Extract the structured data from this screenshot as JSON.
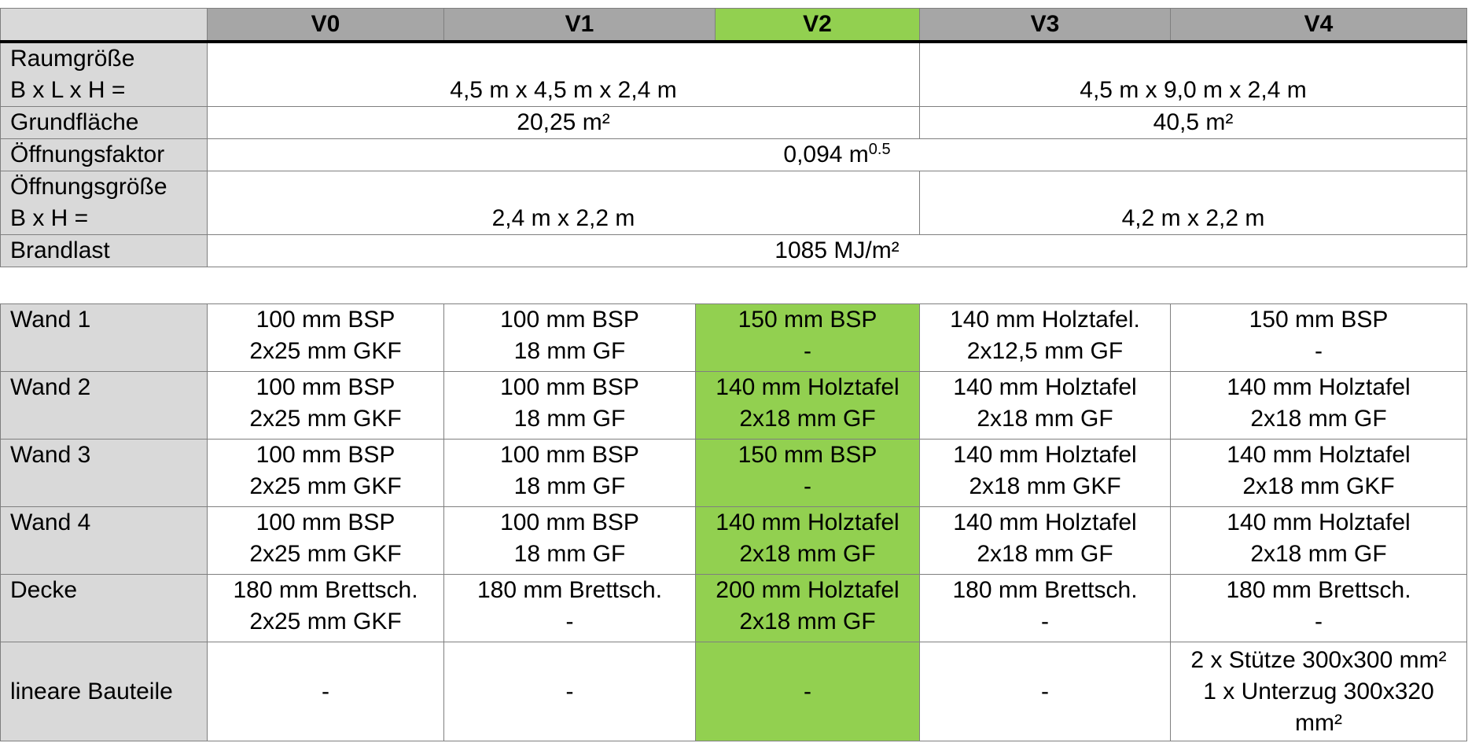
{
  "header": {
    "corner": "",
    "cols": [
      "V0",
      "V1",
      "V2",
      "V3",
      "V4"
    ]
  },
  "table1": {
    "raum": {
      "label1": "Raumgröße",
      "label2": "B x L x H =",
      "v012": "4,5 m x 4,5 m x 2,4 m",
      "v34": "4,5 m x 9,0 m x 2,4 m"
    },
    "grund": {
      "label": "Grundfläche",
      "v012": "20,25 m²",
      "v34": "40,5 m²"
    },
    "oeff": {
      "label": "Öffnungsfaktor",
      "value": "0,094 m",
      "exp": "0.5"
    },
    "oeffg": {
      "label1": "Öffnungsgröße",
      "label2": "B x H =",
      "v012": "2,4 m x 2,2 m",
      "v34": "4,2 m x 2,2 m"
    },
    "brand": {
      "label": "Brandlast",
      "value": "1085 MJ/m²"
    }
  },
  "table2": {
    "rows": [
      {
        "label": "Wand 1",
        "cells": [
          [
            "100 mm BSP",
            "2x25 mm GKF"
          ],
          [
            "100 mm BSP",
            "18 mm GF"
          ],
          [
            "150 mm BSP",
            "-"
          ],
          [
            "140 mm Holztafel.",
            "2x12,5 mm GF"
          ],
          [
            "150 mm BSP",
            "-"
          ]
        ]
      },
      {
        "label": "Wand 2",
        "cells": [
          [
            "100 mm BSP",
            "2x25 mm GKF"
          ],
          [
            "100 mm BSP",
            "18 mm GF"
          ],
          [
            "140 mm Holztafel",
            "2x18 mm GF"
          ],
          [
            "140 mm Holztafel",
            "2x18 mm GF"
          ],
          [
            "140 mm Holztafel",
            "2x18 mm GF"
          ]
        ]
      },
      {
        "label": "Wand 3",
        "cells": [
          [
            "100 mm BSP",
            "2x25 mm GKF"
          ],
          [
            "100 mm BSP",
            "18 mm GF"
          ],
          [
            "150 mm BSP",
            "-"
          ],
          [
            "140 mm Holztafel",
            "2x18 mm GKF"
          ],
          [
            "140 mm Holztafel",
            "2x18 mm GKF"
          ]
        ]
      },
      {
        "label": "Wand 4",
        "cells": [
          [
            "100 mm BSP",
            "2x25 mm GKF"
          ],
          [
            "100 mm BSP",
            "18 mm GF"
          ],
          [
            "140 mm Holztafel",
            "2x18 mm GF"
          ],
          [
            "140 mm Holztafel",
            "2x18 mm GF"
          ],
          [
            "140 mm Holztafel",
            "2x18 mm GF"
          ]
        ]
      },
      {
        "label": "Decke",
        "cells": [
          [
            "180 mm Brettsch.",
            "2x25 mm GKF"
          ],
          [
            "180 mm Brettsch.",
            "-"
          ],
          [
            "200 mm Holztafel",
            "2x18 mm GF"
          ],
          [
            "180 mm Brettsch.",
            "-"
          ],
          [
            "180 mm Brettsch.",
            "-"
          ]
        ]
      }
    ],
    "linear": {
      "label": "lineare Bauteile",
      "cells": [
        "-",
        "-",
        "-",
        "-"
      ],
      "v4": [
        "2 x Stütze 300x300 mm²",
        "1 x Unterzug 300x320",
        "mm²"
      ]
    }
  },
  "colors": {
    "header_gray": "#a6a6a6",
    "label_gray": "#d9d9d9",
    "highlight_green": "#92d050"
  }
}
